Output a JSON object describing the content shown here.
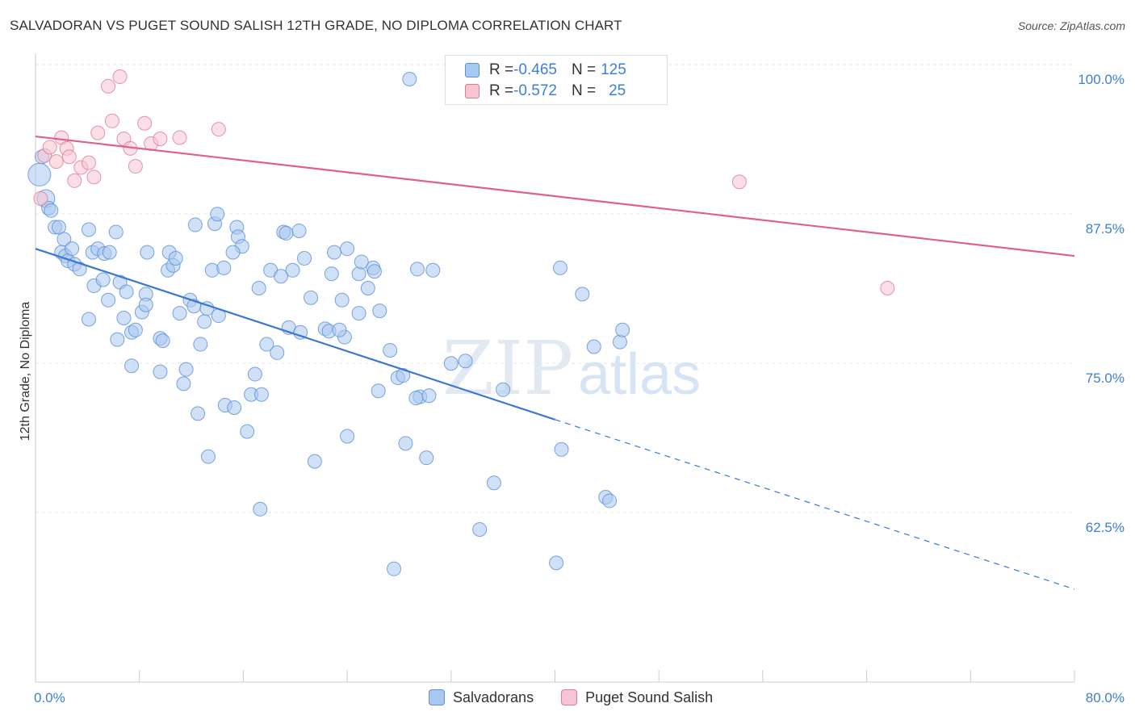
{
  "title": "SALVADORAN VS PUGET SOUND SALISH 12TH GRADE, NO DIPLOMA CORRELATION CHART",
  "source": "Source: ZipAtlas.com",
  "watermark": {
    "zip": "ZIP",
    "atlas": "atlas"
  },
  "legend_stats": [
    {
      "r_label": "R = ",
      "r_value": "-0.465",
      "n_label": "N = ",
      "n_value": "125",
      "color": "#a9c8f0",
      "border": "#5b8fd6"
    },
    {
      "r_label": "R = ",
      "r_value": "-0.572",
      "n_label": "N = ",
      "n_value": "25",
      "color": "#f7c4d2",
      "border": "#e07a9a"
    }
  ],
  "chart_data": {
    "type": "scatter",
    "title": "SALVADORAN VS PUGET SOUND SALISH 12TH GRADE, NO DIPLOMA CORRELATION CHART",
    "xlabel": "",
    "ylabel": "12th Grade, No Diploma",
    "xlim": [
      0,
      80
    ],
    "ylim": [
      52,
      102
    ],
    "x_tick_labels": [
      {
        "value": 0,
        "label": "0.0%"
      },
      {
        "value": 80,
        "label": "80.0%"
      }
    ],
    "y_tick_labels": [
      {
        "value": 100,
        "label": "100.0%"
      },
      {
        "value": 87.5,
        "label": "87.5%"
      },
      {
        "value": 75,
        "label": "75.0%"
      },
      {
        "value": 62.5,
        "label": "62.5%"
      }
    ],
    "grid": true,
    "legend_position": "bottom",
    "series": [
      {
        "name": "Salvadorans",
        "color": "#a9c8f0",
        "edge": "#5b8fd6",
        "line_color": "#3b78d4",
        "trend": {
          "x0": 0,
          "y0": 85.8,
          "x1": 40,
          "y1": 71.5,
          "dashed_to_x": 80,
          "dashed_to_y": 57.3
        },
        "points": [
          [
            0.3,
            92
          ],
          [
            0.5,
            93.5
          ],
          [
            0.8,
            90
          ],
          [
            1,
            89.2
          ],
          [
            1.2,
            89
          ],
          [
            1.5,
            87.6
          ],
          [
            1.8,
            87.6
          ],
          [
            2.2,
            86.6
          ],
          [
            2,
            85.5
          ],
          [
            2.3,
            85.2
          ],
          [
            2.5,
            84.8
          ],
          [
            3,
            84.5
          ],
          [
            2.8,
            85.8
          ],
          [
            3.4,
            84.1
          ],
          [
            4.1,
            87.4
          ],
          [
            4.4,
            85.5
          ],
          [
            4.8,
            85.8
          ],
          [
            5.3,
            85.4
          ],
          [
            5.7,
            85.5
          ],
          [
            6.2,
            87.2
          ],
          [
            6.5,
            83
          ],
          [
            4.5,
            82.7
          ],
          [
            5.2,
            83.2
          ],
          [
            6.8,
            80
          ],
          [
            7,
            82.2
          ],
          [
            7.4,
            78.8
          ],
          [
            5.6,
            81.5
          ],
          [
            4.1,
            79.9
          ],
          [
            6.3,
            78.2
          ],
          [
            7.4,
            76
          ],
          [
            7.7,
            79
          ],
          [
            8.2,
            80.5
          ],
          [
            8.5,
            82
          ],
          [
            8.5,
            81.1
          ],
          [
            8.6,
            85.5
          ],
          [
            9.6,
            78.3
          ],
          [
            9.8,
            78.1
          ],
          [
            9.6,
            75.5
          ],
          [
            10.2,
            84
          ],
          [
            10.3,
            85.5
          ],
          [
            10.6,
            84.4
          ],
          [
            10.8,
            85
          ],
          [
            11.1,
            80.4
          ],
          [
            11.4,
            74.5
          ],
          [
            11.6,
            75.7
          ],
          [
            11.9,
            81.5
          ],
          [
            12.2,
            81
          ],
          [
            12.3,
            87.8
          ],
          [
            12.5,
            72
          ],
          [
            12.7,
            77.8
          ],
          [
            13,
            79.7
          ],
          [
            13.2,
            80.8
          ],
          [
            13.3,
            68.4
          ],
          [
            13.6,
            84
          ],
          [
            13.8,
            87.9
          ],
          [
            14,
            88.7
          ],
          [
            14.1,
            80.2
          ],
          [
            14.5,
            84.2
          ],
          [
            14.6,
            72.7
          ],
          [
            15.3,
            72.5
          ],
          [
            15.5,
            87.6
          ],
          [
            15.6,
            86.8
          ],
          [
            15.9,
            86
          ],
          [
            15.2,
            85.5
          ],
          [
            16.6,
            73.6
          ],
          [
            16.3,
            70.5
          ],
          [
            16.9,
            75.3
          ],
          [
            17.2,
            82.5
          ],
          [
            17.4,
            73.6
          ],
          [
            17.8,
            77.8
          ],
          [
            17.3,
            64
          ],
          [
            18.1,
            84
          ],
          [
            18.6,
            77.1
          ],
          [
            18.9,
            83.5
          ],
          [
            19.1,
            87.2
          ],
          [
            19.3,
            87.1
          ],
          [
            19.8,
            84
          ],
          [
            20.3,
            87.3
          ],
          [
            20.7,
            85
          ],
          [
            19.5,
            79.2
          ],
          [
            20.4,
            78.8
          ],
          [
            21.2,
            81.7
          ],
          [
            21.5,
            68
          ],
          [
            22.3,
            79.1
          ],
          [
            22.6,
            78.9
          ],
          [
            22.8,
            83.7
          ],
          [
            23,
            85.5
          ],
          [
            23.6,
            81.5
          ],
          [
            23.8,
            78.4
          ],
          [
            24,
            85.8
          ],
          [
            24,
            70.1
          ],
          [
            23.4,
            79
          ],
          [
            24.9,
            80.4
          ],
          [
            24.9,
            83.7
          ],
          [
            25.1,
            84.7
          ],
          [
            25.6,
            82.5
          ],
          [
            26,
            84.2
          ],
          [
            26.1,
            83.9
          ],
          [
            26.5,
            80.6
          ],
          [
            26.4,
            73.9
          ],
          [
            27.3,
            77.3
          ],
          [
            27.9,
            75
          ],
          [
            28.3,
            75.2
          ],
          [
            27.6,
            59
          ],
          [
            28.5,
            69.5
          ],
          [
            29.6,
            73.4
          ],
          [
            29.3,
            73.3
          ],
          [
            29.4,
            84.1
          ],
          [
            30.1,
            68.3
          ],
          [
            30.3,
            73.5
          ],
          [
            30.6,
            84
          ],
          [
            32,
            76.2
          ],
          [
            33.1,
            76.4
          ],
          [
            34.2,
            62.3
          ],
          [
            35.3,
            66.2
          ],
          [
            36,
            74
          ],
          [
            40.5,
            69
          ],
          [
            42.1,
            82
          ],
          [
            43.9,
            65
          ],
          [
            44.2,
            64.7
          ],
          [
            45,
            78
          ],
          [
            45.2,
            79
          ],
          [
            43,
            77.6
          ],
          [
            40.4,
            84.2
          ],
          [
            28.8,
            100
          ],
          [
            40.1,
            59.5
          ]
        ]
      },
      {
        "name": "Puget Sound Salish",
        "color": "#f7c4d2",
        "edge": "#e07a9a",
        "line_color": "#e0608a",
        "trend": {
          "x0": 0,
          "y0": 95.2,
          "x1": 80,
          "y1": 85.2
        },
        "points": [
          [
            0.4,
            90
          ],
          [
            0.7,
            93.6
          ],
          [
            1.1,
            94.3
          ],
          [
            1.6,
            93.1
          ],
          [
            2,
            95.1
          ],
          [
            2.4,
            94.2
          ],
          [
            2.6,
            93.5
          ],
          [
            3,
            91.5
          ],
          [
            3.5,
            92.6
          ],
          [
            4.1,
            93
          ],
          [
            4.5,
            91.8
          ],
          [
            4.8,
            95.5
          ],
          [
            5.6,
            99.4
          ],
          [
            5.9,
            96.5
          ],
          [
            6.5,
            100.2
          ],
          [
            6.8,
            95
          ],
          [
            7.3,
            94.2
          ],
          [
            7.7,
            92.7
          ],
          [
            8.4,
            96.3
          ],
          [
            8.9,
            94.6
          ],
          [
            9.6,
            95
          ],
          [
            11.1,
            95.1
          ],
          [
            14.1,
            95.8
          ],
          [
            54.2,
            91.4
          ],
          [
            65.6,
            82.5
          ]
        ]
      }
    ]
  }
}
